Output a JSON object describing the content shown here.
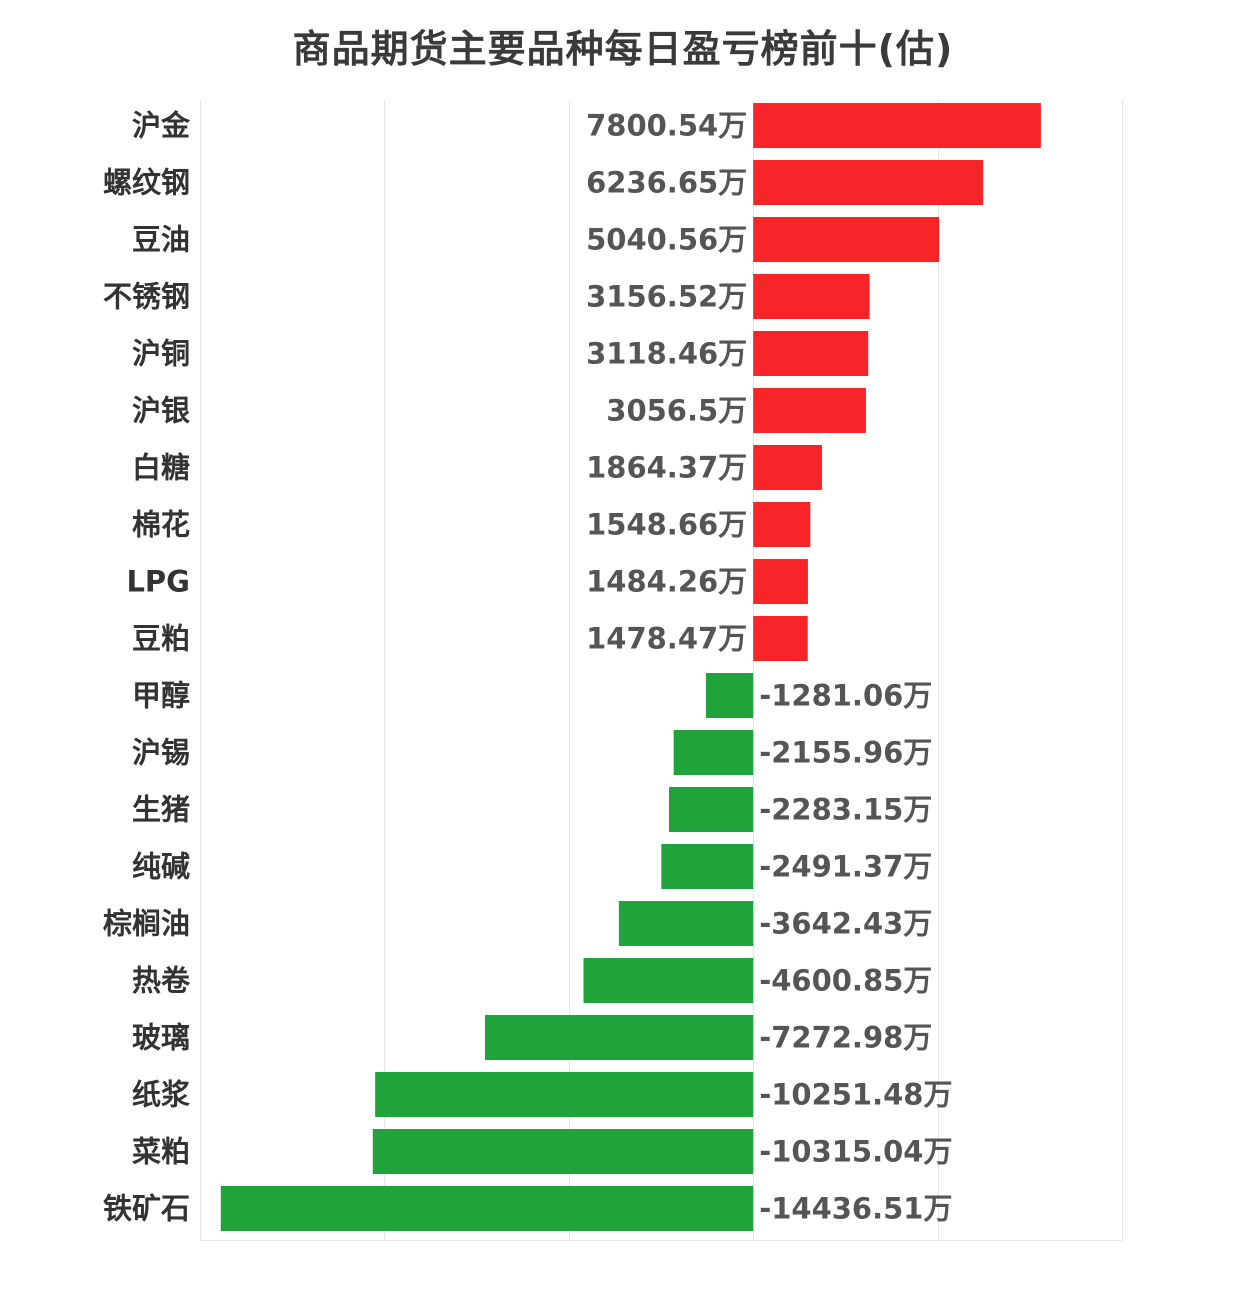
{
  "chart_data": {
    "type": "bar",
    "orientation": "horizontal",
    "title": "商品期货主要品种每日盈亏榜前十(估)",
    "unit_suffix": "万",
    "categories": [
      "沪金",
      "螺纹钢",
      "豆油",
      "不锈钢",
      "沪铜",
      "沪银",
      "白糖",
      "棉花",
      "LPG",
      "豆粕",
      "甲醇",
      "沪锡",
      "生猪",
      "纯碱",
      "棕榈油",
      "热卷",
      "玻璃",
      "纸浆",
      "菜粕",
      "铁矿石"
    ],
    "values": [
      7800.54,
      6236.65,
      5040.56,
      3156.52,
      3118.46,
      3056.5,
      1864.37,
      1548.66,
      1484.26,
      1478.47,
      -1281.06,
      -2155.96,
      -2283.15,
      -2491.37,
      -3642.43,
      -4600.85,
      -7272.98,
      -10251.48,
      -10315.04,
      -14436.51
    ],
    "value_labels": [
      "7800.54万",
      "6236.65万",
      "5040.56万",
      "3156.52万",
      "3118.46万",
      "3056.5万",
      "1864.37万",
      "1548.66万",
      "1484.26万",
      "1478.47万",
      "-1281.06万",
      "-2155.96万",
      "-2283.15万",
      "-2491.37万",
      "-3642.43万",
      "-4600.85万",
      "-7272.98万",
      "-10251.48万",
      "-10315.04万",
      "-14436.51万"
    ],
    "xlim": [
      -15000,
      10000
    ],
    "x_gridlines": [
      -15000,
      -10000,
      -5000,
      0,
      5000,
      10000
    ],
    "grid": true,
    "legend": "none",
    "colors": {
      "positive": "#f72527",
      "negative": "#21a33b"
    }
  }
}
